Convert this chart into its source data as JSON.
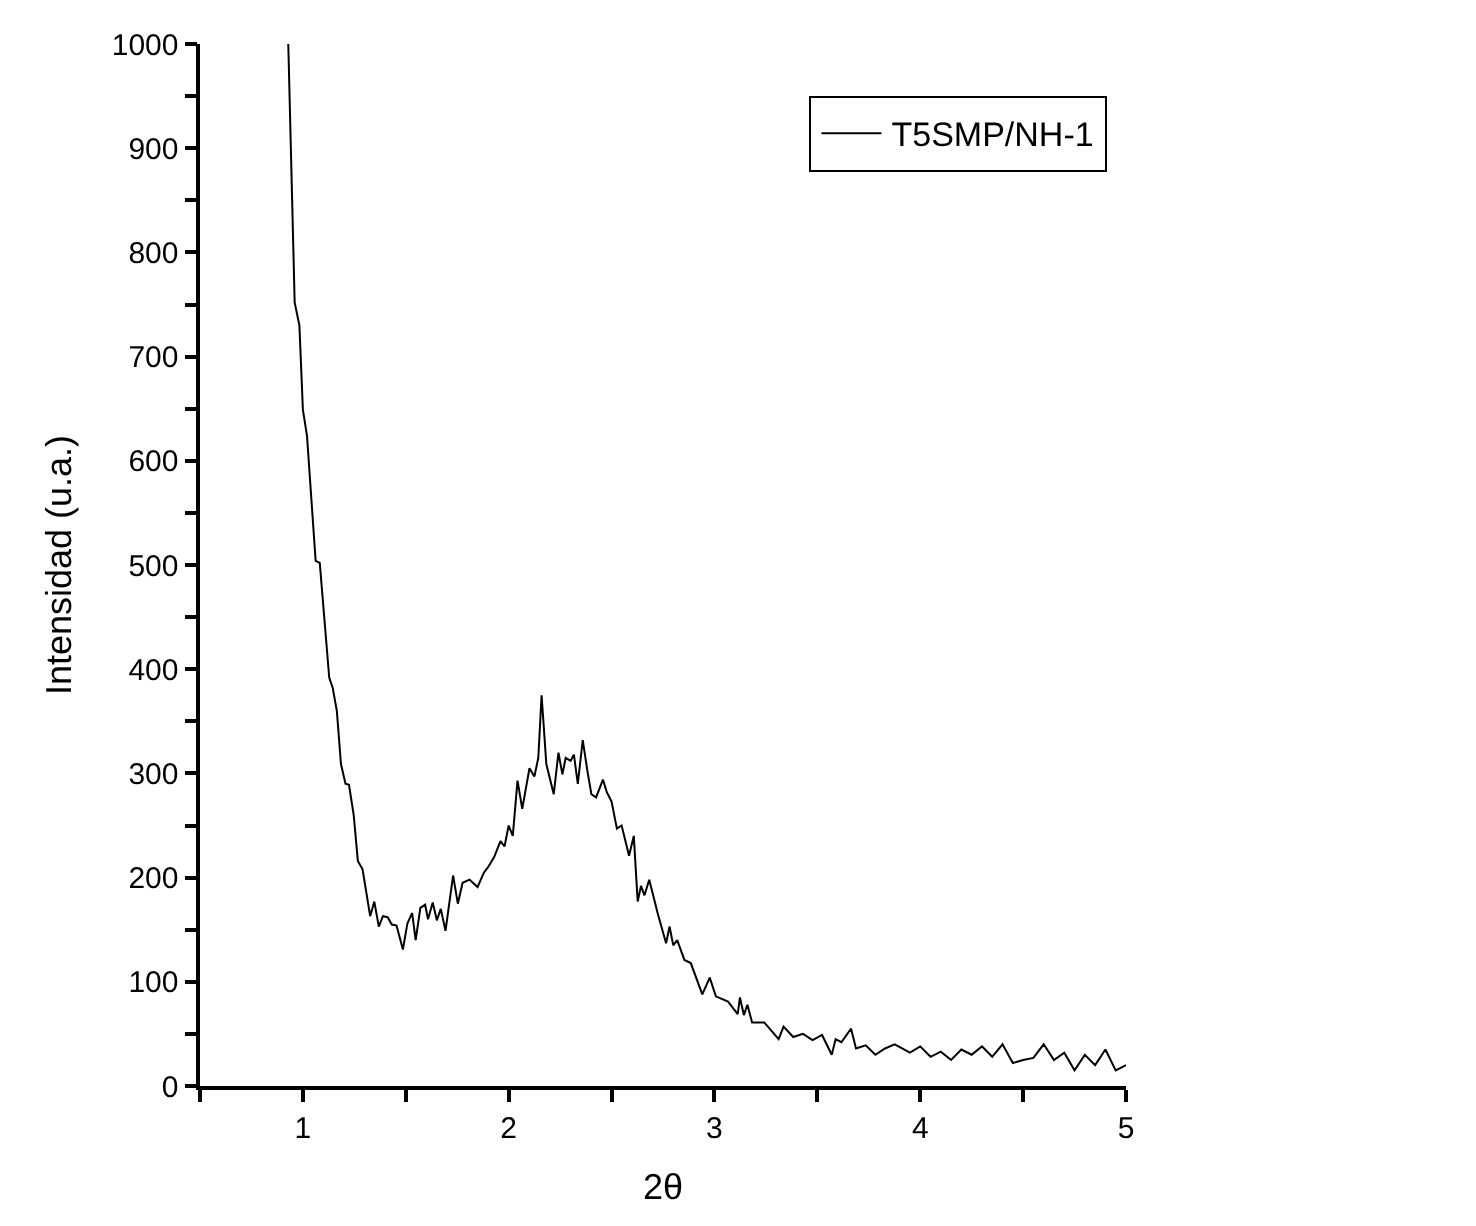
{
  "chart_data": {
    "type": "line",
    "xlabel": "2θ",
    "ylabel": "Intensidad (u.a.)",
    "legend": "top right",
    "marker": "none",
    "line_style": "solid",
    "xlim": [
      0.5,
      5
    ],
    "ylim": [
      0,
      1000
    ],
    "xticks": [
      {
        "value": 0.5,
        "label": null
      },
      1,
      {
        "value": 1.5,
        "label": null
      },
      2,
      {
        "value": 2.5,
        "label": null
      },
      3,
      {
        "value": 3.5,
        "label": null
      },
      4,
      {
        "value": 4.5,
        "label": null
      },
      5
    ],
    "yticks": [
      0,
      {
        "value": 50,
        "label": null
      },
      100,
      {
        "value": 150,
        "label": null
      },
      200,
      {
        "value": 250,
        "label": null
      },
      300,
      {
        "value": 350,
        "label": null
      },
      400,
      {
        "value": 450,
        "label": null
      },
      500,
      {
        "value": 550,
        "label": null
      },
      600,
      {
        "value": 650,
        "label": null
      },
      700,
      {
        "value": 750,
        "label": null
      },
      800,
      {
        "value": 850,
        "label": null
      },
      900,
      {
        "value": 950,
        "label": null
      },
      1000
    ],
    "series": [
      {
        "name": "T5SMP/NH-1",
        "color": "#000000",
        "x": [
          0.929,
          0.96,
          0.983,
          1.0,
          1.02,
          1.062,
          1.082,
          1.128,
          1.145,
          1.165,
          1.185,
          1.207,
          1.224,
          1.247,
          1.267,
          1.29,
          1.327,
          1.347,
          1.369,
          1.389,
          1.412,
          1.432,
          1.455,
          1.486,
          1.508,
          1.531,
          1.548,
          1.571,
          1.594,
          1.608,
          1.631,
          1.651,
          1.67,
          1.693,
          1.73,
          1.753,
          1.776,
          1.81,
          1.849,
          1.88,
          1.9,
          1.93,
          1.96,
          1.98,
          2.0,
          2.02,
          2.043,
          2.066,
          2.101,
          2.125,
          2.144,
          2.16,
          2.183,
          2.219,
          2.242,
          2.261,
          2.277,
          2.301,
          2.317,
          2.336,
          2.36,
          2.383,
          2.402,
          2.425,
          2.458,
          2.477,
          2.5,
          2.526,
          2.549,
          2.585,
          2.608,
          2.627,
          2.643,
          2.66,
          2.683,
          2.725,
          2.765,
          2.782,
          2.8,
          2.819,
          2.854,
          2.885,
          2.941,
          2.977,
          3.007,
          3.066,
          3.113,
          3.124,
          3.143,
          3.16,
          3.183,
          3.242,
          3.312,
          3.336,
          3.383,
          3.43,
          3.477,
          3.523,
          3.57,
          3.589,
          3.617,
          3.664,
          3.688,
          3.735,
          3.782,
          3.829,
          3.876,
          3.95,
          4.0,
          4.05,
          4.1,
          4.15,
          4.2,
          4.25,
          4.3,
          4.35,
          4.4,
          4.45,
          4.5,
          4.55,
          4.6,
          4.65,
          4.7,
          4.75,
          4.8,
          4.85,
          4.9,
          4.95,
          5.0
        ],
        "values": [
          1000,
          752,
          730,
          649,
          624,
          504,
          502,
          392,
          382,
          360,
          309,
          290,
          289,
          260,
          216,
          208,
          163,
          177,
          153,
          163,
          162,
          155,
          154,
          131,
          156,
          166,
          140,
          171,
          174,
          160,
          176,
          159,
          170,
          149,
          202,
          175,
          195,
          198,
          191,
          205,
          210,
          220,
          235,
          230,
          250,
          240,
          293,
          266,
          305,
          297,
          315,
          375,
          309,
          280,
          320,
          299,
          315,
          312,
          318,
          290,
          332,
          302,
          280,
          277,
          294,
          282,
          273,
          247,
          250,
          221,
          240,
          177,
          192,
          183,
          198,
          165,
          137,
          153,
          135,
          140,
          121,
          118,
          88,
          104,
          86,
          81,
          69,
          85,
          68,
          78,
          61,
          61,
          45,
          57,
          47,
          50,
          44,
          49,
          30,
          45,
          42,
          55,
          36,
          39,
          30,
          36,
          40,
          32,
          38,
          28,
          33,
          25,
          35,
          30,
          38,
          28,
          40,
          22,
          25,
          27,
          40,
          25,
          32,
          15,
          30,
          20,
          35,
          15,
          20
        ]
      }
    ]
  }
}
